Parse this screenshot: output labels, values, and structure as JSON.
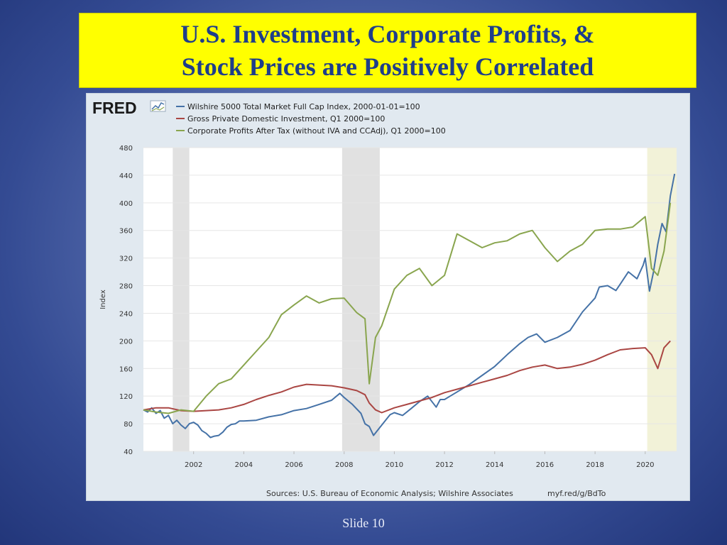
{
  "slide": {
    "title_line1": "U.S. Investment, Corporate Profits, &",
    "title_line2": "Stock Prices are Positively Correlated",
    "slide_number": "Slide 10"
  },
  "fred": {
    "logo_text": "FRED",
    "source_text": "Sources: U.S. Bureau of Economic Analysis; Wilshire Associates",
    "url_text": "myf.red/g/BdTo"
  },
  "colors": {
    "wilshire": "#4572a7",
    "investment": "#aa4643",
    "profits": "#89a54e",
    "recession": "#e1e1e1",
    "projection": "#f2f2d8"
  },
  "chart_data": {
    "type": "line",
    "ylabel": "Index",
    "xlabel": "",
    "ylim": [
      40,
      480
    ],
    "xlim": [
      2000.0,
      2021.25
    ],
    "yticks": [
      40,
      80,
      120,
      160,
      200,
      240,
      280,
      320,
      360,
      400,
      440,
      480
    ],
    "xticks": [
      2002,
      2004,
      2006,
      2008,
      2010,
      2012,
      2014,
      2016,
      2018,
      2020
    ],
    "recessions": [
      [
        2001.17,
        2001.83
      ],
      [
        2007.92,
        2009.42
      ]
    ],
    "shaded_period": [
      2020.08,
      2021.25
    ],
    "grid": true,
    "legend_position": "top-left",
    "series": [
      {
        "name": "Wilshire 5000 Total Market Full Cap Index, 2000-01-01=100",
        "color_key": "wilshire",
        "x": [
          2000.0,
          2000.17,
          2000.33,
          2000.5,
          2000.67,
          2000.83,
          2001.0,
          2001.17,
          2001.33,
          2001.5,
          2001.67,
          2001.83,
          2002.0,
          2002.17,
          2002.33,
          2002.5,
          2002.67,
          2002.83,
          2003.0,
          2003.17,
          2003.33,
          2003.5,
          2003.67,
          2003.83,
          2004.0,
          2004.5,
          2005.0,
          2005.5,
          2006.0,
          2006.5,
          2007.0,
          2007.5,
          2007.83,
          2008.0,
          2008.33,
          2008.67,
          2008.83,
          2009.0,
          2009.17,
          2009.5,
          2009.83,
          2010.0,
          2010.33,
          2010.67,
          2011.0,
          2011.33,
          2011.67,
          2011.83,
          2012.0,
          2012.5,
          2013.0,
          2013.5,
          2014.0,
          2014.5,
          2015.0,
          2015.33,
          2015.67,
          2016.0,
          2016.5,
          2017.0,
          2017.5,
          2018.0,
          2018.17,
          2018.5,
          2018.83,
          2019.0,
          2019.33,
          2019.67,
          2019.92,
          2020.0,
          2020.17,
          2020.33,
          2020.5,
          2020.67,
          2020.83,
          2021.0,
          2021.17
        ],
        "y": [
          100,
          97,
          103,
          95,
          99,
          88,
          92,
          80,
          85,
          78,
          73,
          80,
          82,
          78,
          70,
          66,
          60,
          62,
          63,
          68,
          75,
          79,
          80,
          84,
          84,
          85,
          90,
          93,
          99,
          102,
          108,
          114,
          124,
          118,
          108,
          95,
          80,
          76,
          63,
          78,
          93,
          96,
          92,
          102,
          112,
          120,
          104,
          115,
          115,
          126,
          137,
          150,
          163,
          180,
          196,
          205,
          210,
          198,
          205,
          215,
          242,
          262,
          278,
          280,
          273,
          282,
          300,
          290,
          310,
          320,
          272,
          300,
          340,
          370,
          358,
          410,
          442
        ]
      },
      {
        "name": "Gross Private Domestic Investment, Q1 2000=100",
        "color_key": "investment",
        "x": [
          2000.0,
          2000.5,
          2001.0,
          2001.5,
          2002.0,
          2002.5,
          2003.0,
          2003.5,
          2004.0,
          2004.5,
          2005.0,
          2005.5,
          2006.0,
          2006.5,
          2007.0,
          2007.5,
          2008.0,
          2008.5,
          2008.83,
          2009.0,
          2009.25,
          2009.5,
          2010.0,
          2010.5,
          2011.0,
          2011.5,
          2012.0,
          2012.5,
          2013.0,
          2013.5,
          2014.0,
          2014.5,
          2015.0,
          2015.5,
          2016.0,
          2016.5,
          2017.0,
          2017.5,
          2018.0,
          2018.5,
          2019.0,
          2019.5,
          2020.0,
          2020.25,
          2020.5,
          2020.75,
          2021.0
        ],
        "y": [
          100,
          103,
          103,
          99,
          98,
          99,
          100,
          103,
          108,
          115,
          121,
          126,
          133,
          137,
          136,
          135,
          132,
          128,
          122,
          110,
          100,
          96,
          103,
          108,
          113,
          118,
          125,
          130,
          135,
          140,
          145,
          150,
          157,
          162,
          165,
          160,
          162,
          166,
          172,
          180,
          187,
          189,
          190,
          180,
          160,
          190,
          200
        ]
      },
      {
        "name": "Corporate Profits After Tax (without IVA and CCAdj), Q1 2000=100",
        "color_key": "profits",
        "x": [
          2000.0,
          2000.5,
          2001.0,
          2001.5,
          2002.0,
          2002.5,
          2003.0,
          2003.5,
          2004.0,
          2004.5,
          2005.0,
          2005.5,
          2006.0,
          2006.5,
          2007.0,
          2007.5,
          2008.0,
          2008.5,
          2008.83,
          2009.0,
          2009.25,
          2009.5,
          2010.0,
          2010.5,
          2011.0,
          2011.5,
          2012.0,
          2012.5,
          2013.0,
          2013.5,
          2014.0,
          2014.5,
          2015.0,
          2015.5,
          2016.0,
          2016.5,
          2017.0,
          2017.5,
          2018.0,
          2018.5,
          2019.0,
          2019.5,
          2020.0,
          2020.25,
          2020.5,
          2020.75,
          2021.0
        ],
        "y": [
          100,
          97,
          95,
          100,
          98,
          120,
          138,
          145,
          165,
          185,
          205,
          238,
          252,
          265,
          255,
          261,
          262,
          241,
          232,
          138,
          205,
          222,
          275,
          295,
          305,
          280,
          295,
          355,
          345,
          335,
          342,
          345,
          355,
          360,
          335,
          315,
          330,
          340,
          360,
          362,
          362,
          365,
          380,
          305,
          295,
          330,
          400
        ]
      }
    ]
  }
}
